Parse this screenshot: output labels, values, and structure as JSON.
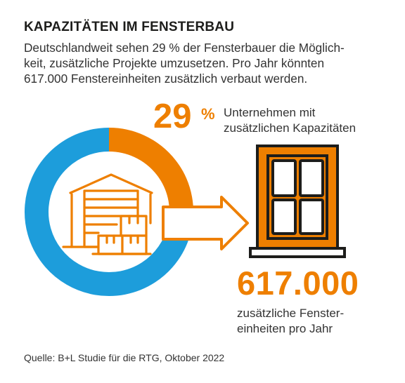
{
  "title": "KAPAZITÄTEN IM FENSTERBAU",
  "intro_lines": [
    "Deutschlandweit sehen 29 % der Fensterbauer die Möglich-",
    "keit, zusätzliche Projekte umzusetzen. Pro Jahr könnten",
    "617.000 Fenstereinheiten zusätzlich verbaut werden."
  ],
  "share": {
    "value": "29",
    "unit": "%",
    "label_lines": [
      "Unternehmen mit",
      "zusätzlichen Kapazitäten"
    ]
  },
  "units": {
    "value": "617.000",
    "label_lines": [
      "zusätzliche Fenster-",
      "einheiten pro Jahr"
    ]
  },
  "source": "Quelle: B+L Studie für die RTG, Oktober 2022",
  "colors": {
    "orange": "#ee7f00",
    "blue": "#1d9ddb",
    "dark": "#1d1d1b"
  },
  "icons": [
    "warehouse-icon",
    "arrow-right-icon",
    "window-icon"
  ],
  "chart_data": {
    "type": "pie",
    "donut": true,
    "slices": [
      {
        "label": "Unternehmen mit zusätzlichen Kapazitäten",
        "value": 29,
        "color": "#ee7f00"
      },
      {
        "label": "",
        "value": 71,
        "color": "#1d9ddb"
      }
    ]
  }
}
